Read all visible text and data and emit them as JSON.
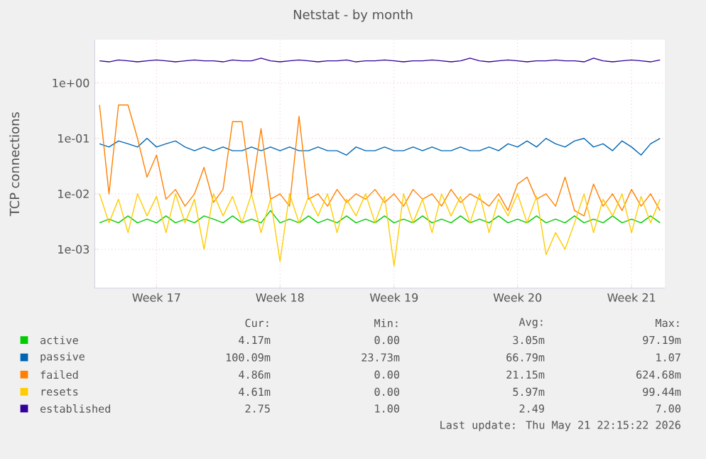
{
  "chart_data": {
    "type": "line",
    "title": "Netstat - by month",
    "ylabel": "TCP connections",
    "log": true,
    "grid": true,
    "legend": "bottom",
    "marker": "none",
    "line_style": "solid",
    "ylim": [
      0.0002,
      6
    ],
    "yticks": [
      {
        "value": 0.001,
        "label": "1e-03"
      },
      {
        "value": 0.01,
        "label": "1e-02"
      },
      {
        "value": 0.1,
        "label": "1e-01"
      },
      {
        "value": 1,
        "label": "1e+00"
      }
    ],
    "categories": [
      null,
      null,
      null,
      null,
      null,
      null,
      "Week 17",
      null,
      null,
      null,
      null,
      null,
      null,
      null,
      null,
      null,
      null,
      null,
      null,
      "Week 18",
      null,
      null,
      null,
      null,
      null,
      null,
      null,
      null,
      null,
      null,
      null,
      "Week 19",
      null,
      null,
      null,
      null,
      null,
      null,
      null,
      null,
      null,
      null,
      null,
      null,
      "Week 20",
      null,
      null,
      null,
      null,
      null,
      null,
      null,
      null,
      null,
      null,
      null,
      "Week 21",
      null,
      null,
      null
    ],
    "series": [
      {
        "name": "active",
        "color": "#00cc00",
        "values": [
          0.003,
          0.0035,
          0.003,
          0.004,
          0.003,
          0.0035,
          0.003,
          0.004,
          0.003,
          0.0035,
          0.003,
          0.004,
          0.0035,
          0.003,
          0.004,
          0.003,
          0.0035,
          0.003,
          0.005,
          0.003,
          0.0035,
          0.003,
          0.004,
          0.003,
          0.0035,
          0.003,
          0.004,
          0.003,
          0.0035,
          0.003,
          0.004,
          0.003,
          0.0035,
          0.003,
          0.004,
          0.003,
          0.0035,
          0.003,
          0.004,
          0.003,
          0.0035,
          0.003,
          0.004,
          0.003,
          0.0035,
          0.003,
          0.004,
          0.003,
          0.0035,
          0.003,
          0.004,
          0.003,
          0.0035,
          0.003,
          0.004,
          0.003,
          0.0035,
          0.003,
          0.004,
          0.003
        ]
      },
      {
        "name": "passive",
        "color": "#0066b3",
        "values": [
          0.08,
          0.07,
          0.09,
          0.08,
          0.07,
          0.1,
          0.07,
          0.08,
          0.09,
          0.07,
          0.06,
          0.07,
          0.06,
          0.07,
          0.06,
          0.06,
          0.07,
          0.06,
          0.07,
          0.06,
          0.07,
          0.06,
          0.06,
          0.07,
          0.06,
          0.06,
          0.05,
          0.07,
          0.06,
          0.06,
          0.07,
          0.06,
          0.06,
          0.07,
          0.06,
          0.07,
          0.06,
          0.06,
          0.07,
          0.06,
          0.06,
          0.07,
          0.06,
          0.08,
          0.07,
          0.09,
          0.07,
          0.1,
          0.08,
          0.07,
          0.09,
          0.1,
          0.07,
          0.08,
          0.06,
          0.09,
          0.07,
          0.05,
          0.08,
          0.1
        ]
      },
      {
        "name": "failed",
        "color": "#ff8000",
        "values": [
          0.4,
          0.01,
          0.4,
          0.4,
          0.1,
          0.02,
          0.05,
          0.008,
          0.012,
          0.006,
          0.01,
          0.03,
          0.007,
          0.012,
          0.2,
          0.2,
          0.01,
          0.15,
          0.008,
          0.01,
          0.006,
          0.25,
          0.008,
          0.01,
          0.006,
          0.012,
          0.007,
          0.01,
          0.008,
          0.012,
          0.007,
          0.01,
          0.006,
          0.012,
          0.008,
          0.01,
          0.006,
          0.012,
          0.007,
          0.01,
          0.008,
          0.006,
          0.01,
          0.005,
          0.015,
          0.02,
          0.008,
          0.01,
          0.006,
          0.02,
          0.005,
          0.004,
          0.015,
          0.006,
          0.01,
          0.005,
          0.012,
          0.006,
          0.01,
          0.005
        ]
      },
      {
        "name": "resets",
        "color": "#ffcc00",
        "values": [
          0.01,
          0.003,
          0.008,
          0.002,
          0.01,
          0.004,
          0.009,
          0.002,
          0.01,
          0.003,
          0.008,
          0.001,
          0.01,
          0.004,
          0.009,
          0.003,
          0.01,
          0.002,
          0.008,
          0.0006,
          0.01,
          0.003,
          0.009,
          0.004,
          0.01,
          0.002,
          0.008,
          0.004,
          0.01,
          0.003,
          0.009,
          0.0005,
          0.01,
          0.003,
          0.008,
          0.002,
          0.01,
          0.004,
          0.009,
          0.003,
          0.01,
          0.002,
          0.008,
          0.004,
          0.01,
          0.003,
          0.009,
          0.0008,
          0.002,
          0.001,
          0.003,
          0.01,
          0.002,
          0.008,
          0.004,
          0.01,
          0.002,
          0.009,
          0.003,
          0.008
        ]
      },
      {
        "name": "established",
        "color": "#330099",
        "values": [
          2.5,
          2.4,
          2.6,
          2.5,
          2.4,
          2.5,
          2.6,
          2.5,
          2.4,
          2.5,
          2.6,
          2.5,
          2.5,
          2.4,
          2.6,
          2.5,
          2.5,
          2.8,
          2.5,
          2.4,
          2.5,
          2.6,
          2.5,
          2.4,
          2.5,
          2.5,
          2.6,
          2.4,
          2.5,
          2.5,
          2.6,
          2.5,
          2.4,
          2.5,
          2.5,
          2.6,
          2.5,
          2.4,
          2.5,
          2.8,
          2.5,
          2.4,
          2.5,
          2.6,
          2.5,
          2.4,
          2.5,
          2.5,
          2.6,
          2.5,
          2.5,
          2.4,
          2.8,
          2.5,
          2.4,
          2.5,
          2.6,
          2.5,
          2.4,
          2.6
        ]
      }
    ],
    "annotations": [
      "Cur:",
      "Min:",
      "Avg:",
      "Max:",
      "4.17m",
      "0.00",
      "3.05m",
      "97.19m",
      "100.09m",
      "23.73m",
      "66.79m",
      "1.07",
      "4.86m",
      "0.00",
      "21.15m",
      "624.68m",
      "4.61m",
      "0.00",
      "5.97m",
      "99.44m",
      "2.75",
      "1.00",
      "2.49",
      "7.00",
      "Last update: Thu May 21 22:15:22 2026"
    ]
  }
}
